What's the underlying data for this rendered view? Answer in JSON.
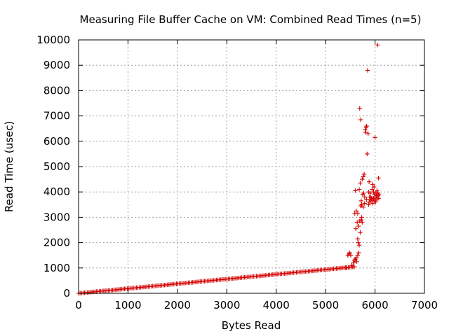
{
  "chart_data": {
    "type": "scatter",
    "title": "Measuring File Buffer Cache on VM: Combined Read Times (n=5)",
    "xlabel": "Bytes Read",
    "ylabel": "Read Time (usec)",
    "xlim": [
      0,
      7000
    ],
    "ylim": [
      0,
      10000
    ],
    "x_ticks": [
      "0",
      "1000",
      "2000",
      "3000",
      "4000",
      "5000",
      "6000",
      "7000"
    ],
    "y_ticks": [
      "0",
      "1000",
      "2000",
      "3000",
      "4000",
      "5000",
      "6000",
      "7000",
      "8000",
      "9000",
      "10000"
    ],
    "grid": true,
    "legend": "none",
    "marker": "+",
    "series_color": "#d40000",
    "linear_region": {
      "x_start": 0,
      "x_end": 5600,
      "x_step": 30,
      "y_at_start": 0,
      "y_at_end": 1050
    },
    "points": [
      [
        5420,
        1000
      ],
      [
        5450,
        1500
      ],
      [
        5470,
        1550
      ],
      [
        5490,
        1600
      ],
      [
        5510,
        1500
      ],
      [
        5530,
        1100
      ],
      [
        5550,
        1050
      ],
      [
        5560,
        1200
      ],
      [
        5580,
        1300
      ],
      [
        5600,
        1350
      ],
      [
        5620,
        1400
      ],
      [
        5630,
        1250
      ],
      [
        5650,
        1500
      ],
      [
        5670,
        1600
      ],
      [
        5590,
        3150
      ],
      [
        5610,
        2550
      ],
      [
        5620,
        3250
      ],
      [
        5640,
        2800
      ],
      [
        5650,
        2150
      ],
      [
        5660,
        2000
      ],
      [
        5670,
        2650
      ],
      [
        5680,
        1900
      ],
      [
        5690,
        2850
      ],
      [
        5700,
        2400
      ],
      [
        5710,
        3450
      ],
      [
        5720,
        2900
      ],
      [
        5730,
        3000
      ],
      [
        5740,
        2800
      ],
      [
        5600,
        4050
      ],
      [
        5650,
        3150
      ],
      [
        5680,
        4100
      ],
      [
        5690,
        7300
      ],
      [
        5700,
        4350
      ],
      [
        5710,
        6850
      ],
      [
        5720,
        3650
      ],
      [
        5730,
        3500
      ],
      [
        5740,
        4500
      ],
      [
        5750,
        3900
      ],
      [
        5760,
        4600
      ],
      [
        5770,
        3950
      ],
      [
        5780,
        4700
      ],
      [
        5790,
        3800
      ],
      [
        5800,
        6450
      ],
      [
        5810,
        6350
      ],
      [
        5820,
        6550
      ],
      [
        5830,
        6600
      ],
      [
        5840,
        5500
      ],
      [
        5850,
        8800
      ],
      [
        5860,
        6300
      ],
      [
        5870,
        4000
      ],
      [
        5880,
        4400
      ],
      [
        5890,
        3800
      ],
      [
        5900,
        3950
      ],
      [
        5910,
        3700
      ],
      [
        5920,
        3650
      ],
      [
        5930,
        3750
      ],
      [
        5940,
        4100
      ],
      [
        5950,
        4300
      ],
      [
        5960,
        3700
      ],
      [
        5970,
        4000
      ],
      [
        5980,
        4200
      ],
      [
        5990,
        3900
      ],
      [
        6000,
        6150
      ],
      [
        6010,
        3600
      ],
      [
        6020,
        3800
      ],
      [
        6030,
        3850
      ],
      [
        6040,
        4050
      ],
      [
        6050,
        9800
      ],
      [
        6060,
        3950
      ],
      [
        6070,
        4550
      ],
      [
        6075,
        3750
      ],
      [
        6080,
        3900
      ],
      [
        5760,
        3400
      ],
      [
        5790,
        3550
      ],
      [
        5830,
        3700
      ],
      [
        5880,
        3600
      ],
      [
        5950,
        3550
      ],
      [
        5990,
        3650
      ],
      [
        6020,
        3950
      ],
      [
        6040,
        3700
      ],
      [
        6060,
        3850
      ],
      [
        5870,
        3500
      ],
      [
        5910,
        3800
      ],
      [
        5970,
        3750
      ]
    ]
  }
}
